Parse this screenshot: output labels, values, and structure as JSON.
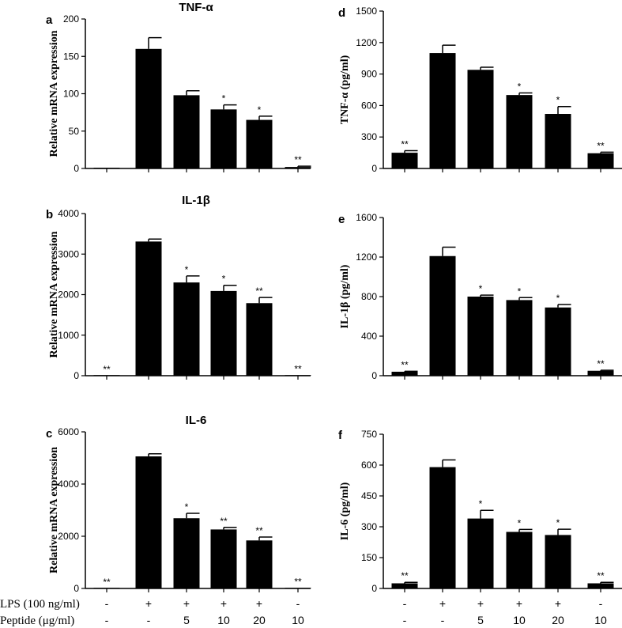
{
  "figure": {
    "condition_rows": [
      {
        "label": "LPS (100 ng/ml)",
        "values": [
          "-",
          "+",
          "+",
          "+",
          "+",
          "-"
        ]
      },
      {
        "label": "Peptide (μg/ml)",
        "values": [
          "-",
          "-",
          "5",
          "10",
          "20",
          "10"
        ]
      }
    ]
  },
  "chart_data": [
    {
      "type": "bar",
      "letter": "a",
      "title": "TNF-α",
      "ylabel": "Relative  mRNA expression",
      "ylim": [
        0,
        200
      ],
      "yticks": [
        0,
        50,
        100,
        150,
        200
      ],
      "values": [
        1,
        160,
        98,
        79,
        65,
        2
      ],
      "errors": [
        0,
        15,
        6,
        6,
        5,
        1
      ],
      "significance": [
        "",
        "",
        "",
        "*",
        "*",
        "**"
      ]
    },
    {
      "type": "bar",
      "letter": "b",
      "title": "IL-1β",
      "ylabel": "Relative  mRNA expression",
      "ylim": [
        0,
        4000
      ],
      "yticks": [
        0,
        1000,
        2000,
        3000,
        4000
      ],
      "values": [
        0,
        3310,
        2300,
        2090,
        1790,
        10
      ],
      "errors": [
        0,
        60,
        160,
        140,
        140,
        0
      ],
      "significance": [
        "**",
        "",
        "*",
        "*",
        "**",
        "**"
      ]
    },
    {
      "type": "bar",
      "letter": "c",
      "title": "IL-6",
      "ylabel": "Relative  mRNA expression",
      "ylim": [
        0,
        6000
      ],
      "yticks": [
        0,
        2000,
        4000,
        6000
      ],
      "values": [
        0,
        5060,
        2690,
        2260,
        1840,
        20
      ],
      "errors": [
        0,
        100,
        190,
        80,
        130,
        0
      ],
      "significance": [
        "**",
        "",
        "*",
        "**",
        "**",
        "**"
      ]
    },
    {
      "type": "bar",
      "letter": "d",
      "title": "",
      "ylabel": "TNF-α (pg/ml)",
      "ylim": [
        0,
        1500
      ],
      "yticks": [
        0,
        300,
        600,
        900,
        1200,
        1500
      ],
      "values": [
        150,
        1100,
        940,
        700,
        520,
        145
      ],
      "errors": [
        20,
        75,
        25,
        20,
        70,
        10
      ],
      "significance": [
        "**",
        "",
        "",
        "*",
        "*",
        "**"
      ]
    },
    {
      "type": "bar",
      "letter": "e",
      "title": "",
      "ylabel": "IL-1β  (pg/ml)",
      "ylim": [
        0,
        1600
      ],
      "yticks": [
        0,
        400,
        800,
        1200,
        1600
      ],
      "values": [
        40,
        1210,
        800,
        765,
        690,
        50
      ],
      "errors": [
        5,
        90,
        15,
        25,
        30,
        5
      ],
      "significance": [
        "**",
        "",
        "*",
        "*",
        "*",
        "**"
      ]
    },
    {
      "type": "bar",
      "letter": "f",
      "title": "",
      "ylabel": "IL-6 (pg/ml)",
      "ylim": [
        0,
        750
      ],
      "yticks": [
        0,
        150,
        300,
        450,
        600,
        750
      ],
      "values": [
        25,
        590,
        340,
        275,
        260,
        25
      ],
      "errors": [
        5,
        35,
        40,
        12,
        28,
        5
      ],
      "significance": [
        "**",
        "",
        "*",
        "*",
        "*",
        "**"
      ]
    }
  ]
}
